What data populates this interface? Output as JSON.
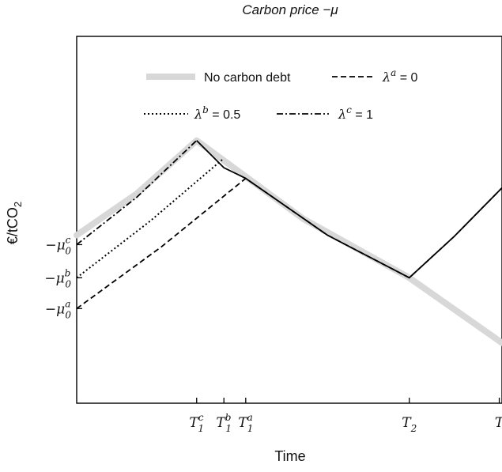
{
  "chart_data": {
    "type": "line",
    "title": "Carbon price  −μ",
    "xlabel": "Time",
    "ylabel": "€/tCO",
    "ylabel_sub": "2",
    "grid": false,
    "legend_position": "top",
    "x_ticks": [
      {
        "x": 5.8,
        "main": "T",
        "sub": "1",
        "sup": "c"
      },
      {
        "x": 6.8,
        "main": "T",
        "sub": "1",
        "sup": "b"
      },
      {
        "x": 7.6,
        "main": "T",
        "sub": "1",
        "sup": "a"
      },
      {
        "x": 13.6,
        "main": "T",
        "sub": "2",
        "sup": ""
      },
      {
        "x": 16.9,
        "main": "T",
        "sub": "",
        "sup": ""
      }
    ],
    "y_ticks": [
      {
        "y": 5.2,
        "minus": "−",
        "main": "μ",
        "sub": "0",
        "sup": "c"
      },
      {
        "y": 3.8,
        "minus": "−",
        "main": "μ",
        "sub": "0",
        "sup": "b"
      },
      {
        "y": 2.5,
        "minus": "−",
        "main": "μ",
        "sub": "0",
        "sup": "a"
      }
    ],
    "xlim": [
      1.4,
      17.0
    ],
    "ylim": [
      -1.5,
      14.0
    ],
    "series": [
      {
        "name": "No carbon debt",
        "label": "No carbon debt",
        "style": "solid-thick",
        "color": "#d8d8d8",
        "points": [
          [
            1.4,
            5.6
          ],
          [
            3.6,
            7.35
          ],
          [
            5.8,
            9.6
          ],
          [
            9.7,
            6.3
          ],
          [
            13.6,
            3.8
          ],
          [
            17.0,
            1.05
          ]
        ]
      },
      {
        "name": "λa = 0",
        "label_greek": "λ",
        "label_sup": "a",
        "label_rest": " = 0",
        "style": "dashed",
        "color": "#000000",
        "points": [
          [
            1.4,
            2.5
          ],
          [
            4.5,
            5.1
          ],
          [
            7.6,
            8.0
          ],
          [
            10.6,
            5.6
          ],
          [
            13.6,
            3.8
          ],
          [
            15.25,
            5.55
          ],
          [
            17.0,
            7.6
          ]
        ]
      },
      {
        "name": "λb = 0.5",
        "label_greek": "λ",
        "label_sup": "b",
        "label_rest": " = 0.5",
        "style": "dotted",
        "color": "#000000",
        "points": [
          [
            1.4,
            3.8
          ],
          [
            4.1,
            6.2
          ],
          [
            6.8,
            8.85
          ]
        ]
      },
      {
        "name": "λc = 1",
        "label_greek": "λ",
        "label_sup": "c",
        "label_rest": " = 1",
        "style": "dashdot",
        "color": "#000000",
        "points": [
          [
            1.4,
            5.2
          ],
          [
            3.6,
            7.2
          ],
          [
            5.8,
            9.6
          ]
        ]
      }
    ]
  }
}
